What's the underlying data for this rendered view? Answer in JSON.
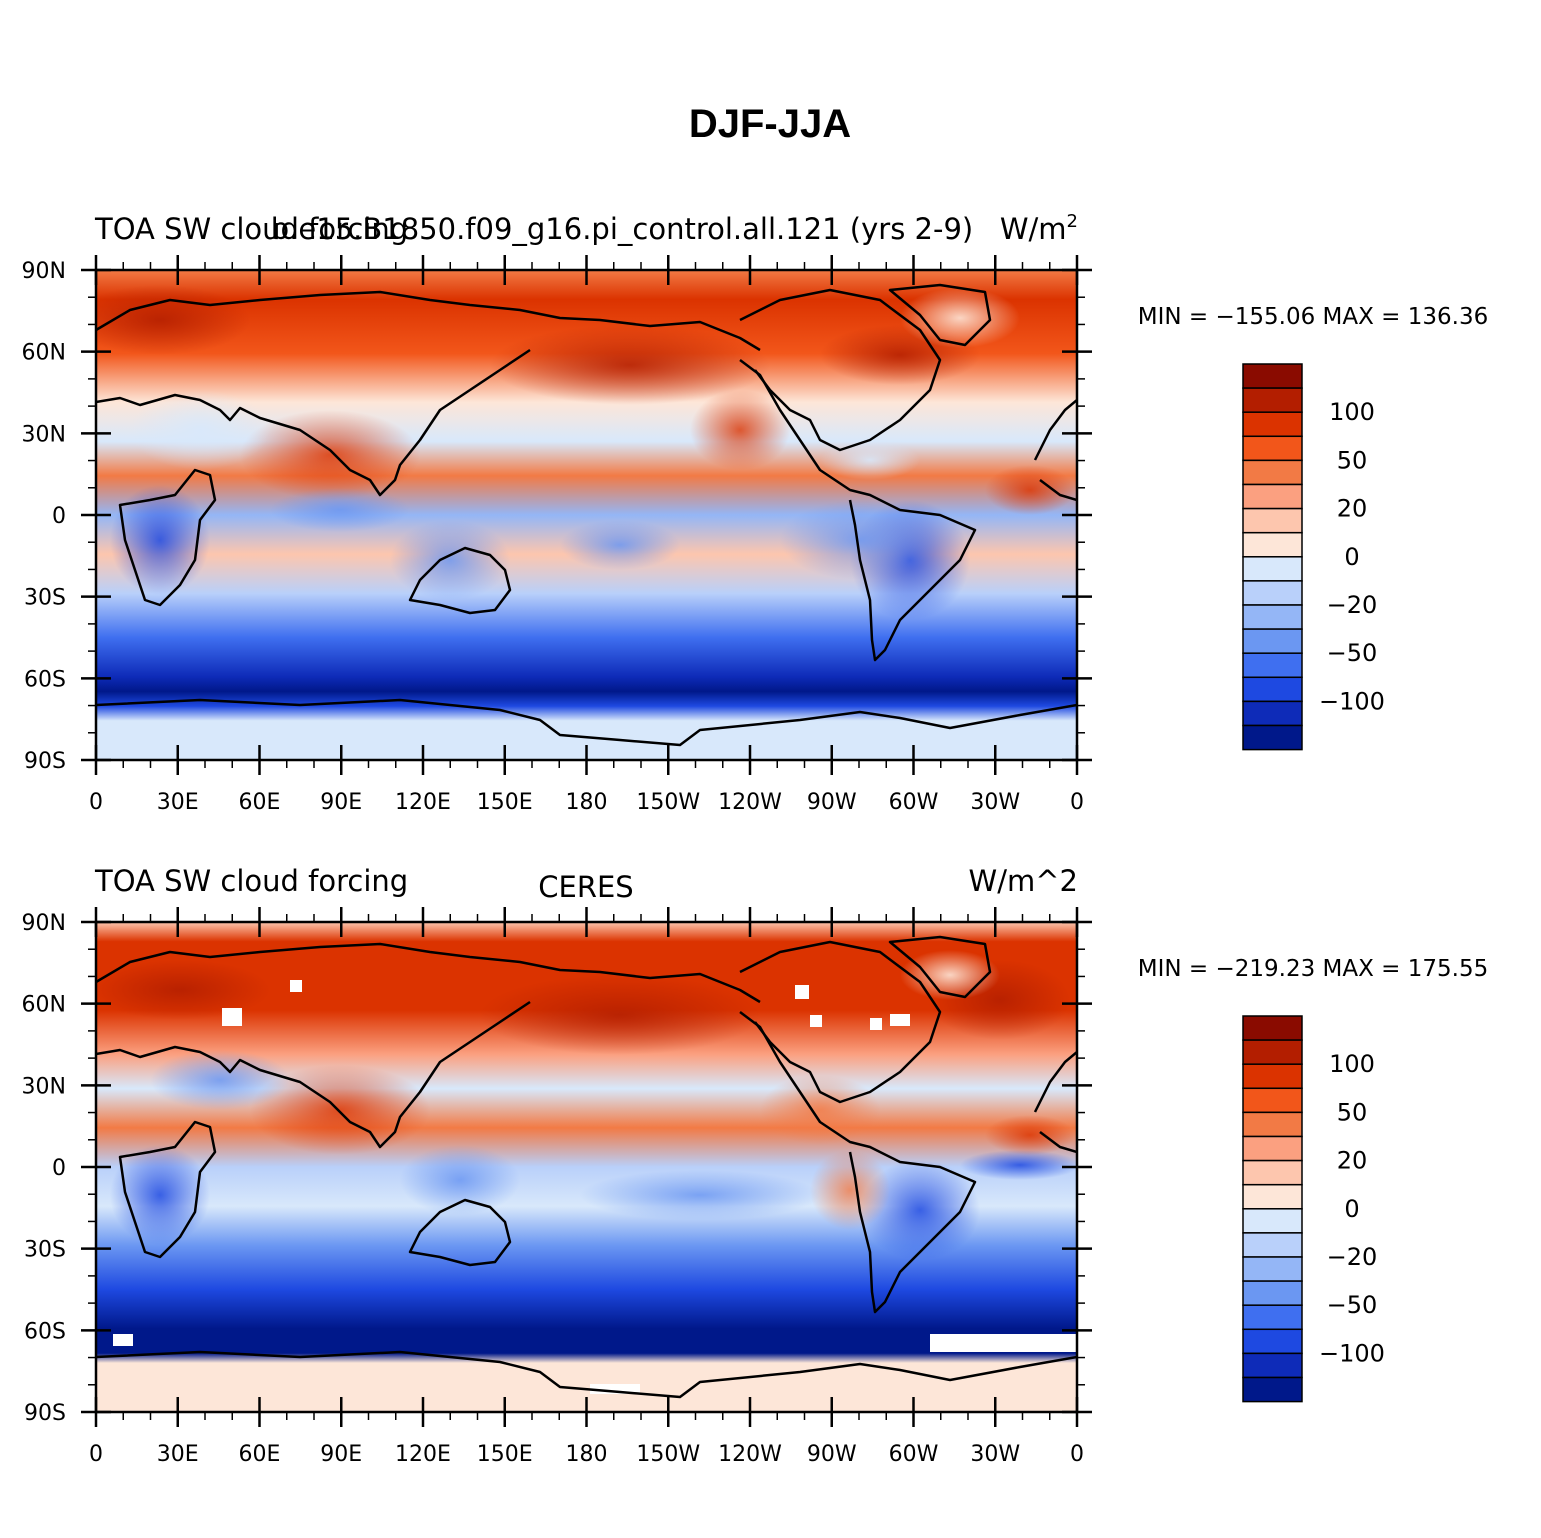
{
  "figure": {
    "title": "DJF-JJA"
  },
  "panels": [
    {
      "left_title": "TOA SW cloud forcing",
      "center_title": "b.e15.B1850.f09_g16.pi_control.all.121 (yrs 2-9)",
      "right_title": "W/m",
      "right_title_sup": "2",
      "stats": "MIN = −155.06  MAX = 136.36",
      "min": -155.06,
      "max": 136.36
    },
    {
      "left_title": "TOA SW cloud forcing",
      "center_title": "CERES",
      "right_title": "W/m^2",
      "right_title_sup": "",
      "stats": "MIN = −219.23  MAX = 175.55",
      "min": -219.23,
      "max": 175.55
    }
  ],
  "axes": {
    "lon_ticks": [
      "0",
      "30E",
      "60E",
      "90E",
      "120E",
      "150E",
      "180",
      "150W",
      "120W",
      "90W",
      "60W",
      "30W",
      "0"
    ],
    "lat_ticks": [
      "90N",
      "60N",
      "30N",
      "0",
      "30S",
      "60S",
      "90S"
    ]
  },
  "colorbar": {
    "labels": [
      {
        "text": "100",
        "level": 1
      },
      {
        "text": "50",
        "level": 3
      },
      {
        "text": "20",
        "level": 5
      },
      {
        "text": "0",
        "level": 7
      },
      {
        "text": "−20",
        "level": 9
      },
      {
        "text": "−50",
        "level": 11
      },
      {
        "text": "−100",
        "level": 13
      }
    ],
    "colors": [
      "#8a0b00",
      "#b31e00",
      "#db3300",
      "#f2561a",
      "#f27a45",
      "#fba080",
      "#fdc6ae",
      "#fde6d8",
      "#d8e8fb",
      "#b9d0fa",
      "#94b6f6",
      "#6b97f2",
      "#3f6ff0",
      "#1e49e1",
      "#0e2bb8",
      "#00188a"
    ]
  }
}
